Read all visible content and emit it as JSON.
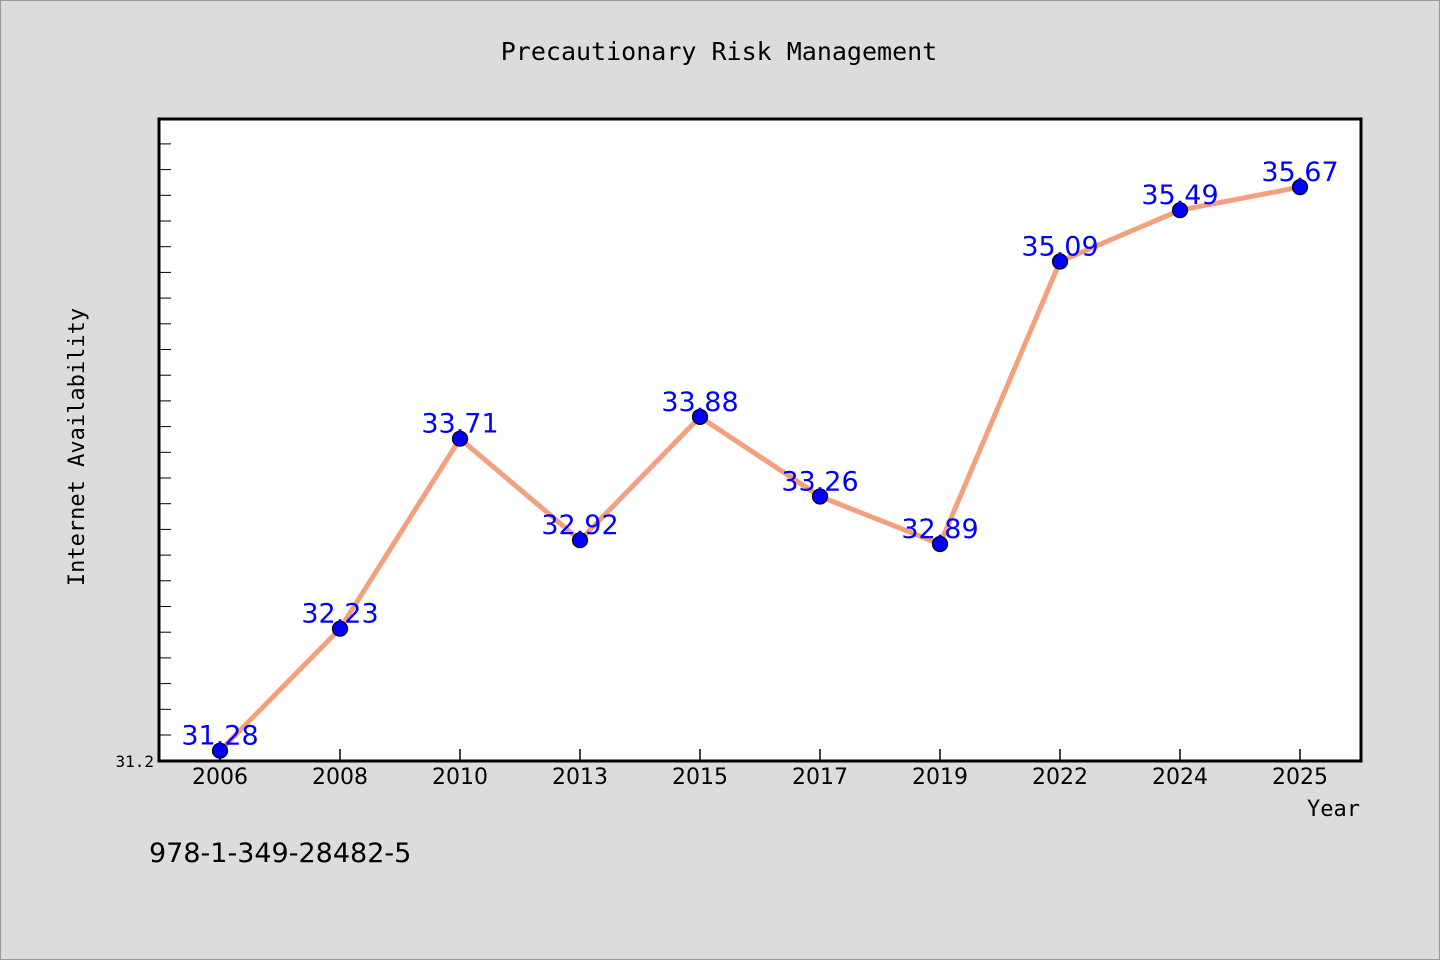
{
  "chart_data": {
    "type": "line",
    "title": "Precautionary Risk Management",
    "xlabel": "Year",
    "ylabel": "Internet Availability",
    "categories": [
      "2006",
      "2008",
      "2010",
      "2013",
      "2015",
      "2017",
      "2019",
      "2022",
      "2024",
      "2025"
    ],
    "series": [
      {
        "values": [
          31.28,
          32.23,
          33.71,
          32.92,
          33.88,
          33.26,
          32.89,
          35.09,
          35.49,
          35.67
        ],
        "data_labels": [
          "31.28",
          "32.23",
          "33.71",
          "32.92",
          "33.88",
          "33.26",
          "32.89",
          "35.09",
          "35.49",
          "35.67"
        ]
      }
    ],
    "ytick_labels": [
      "31.2"
    ],
    "ylim": [
      31.2,
      36.2
    ],
    "grid": false,
    "legend": "none",
    "colors": {
      "line": "#f4a07e",
      "marker": "#0000ff",
      "data_label": "#0000ff",
      "plot_background": "#ffffff",
      "figure_background": "#dcdcdc"
    }
  },
  "footer_text": "978-1-349-28482-5"
}
